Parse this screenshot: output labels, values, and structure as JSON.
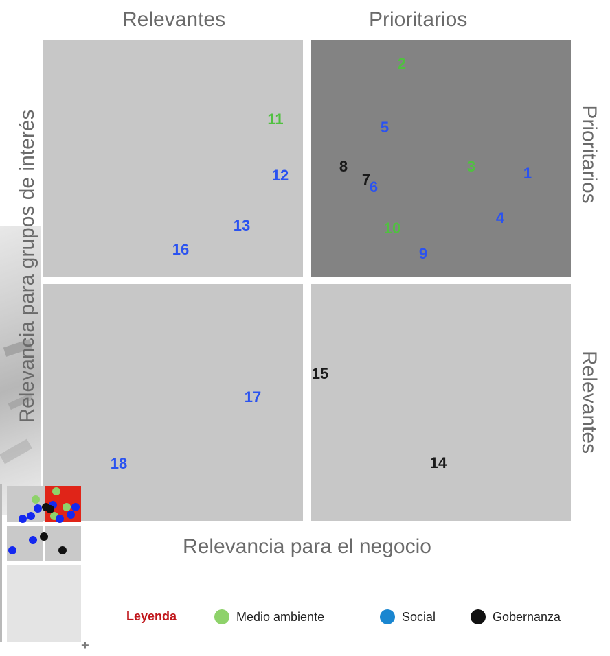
{
  "titles": {
    "top_left": "Relevantes",
    "top_right": "Prioritarios",
    "right_top": "Prioritarios",
    "right_bottom": "Relevantes",
    "y_axis": "Relevancia para grupos de interés",
    "x_axis": "Relevancia para el negocio"
  },
  "colors": {
    "medio_ambiente": "#50c040",
    "social": "#2a52f0",
    "gobernanza": "#1a1a1a"
  },
  "items": [
    {
      "label": "1",
      "category": "social"
    },
    {
      "label": "2",
      "category": "medio_ambiente"
    },
    {
      "label": "3",
      "category": "medio_ambiente"
    },
    {
      "label": "4",
      "category": "social"
    },
    {
      "label": "5",
      "category": "social"
    },
    {
      "label": "6",
      "category": "social"
    },
    {
      "label": "7",
      "category": "gobernanza"
    },
    {
      "label": "8",
      "category": "gobernanza"
    },
    {
      "label": "9",
      "category": "social"
    },
    {
      "label": "10",
      "category": "medio_ambiente"
    },
    {
      "label": "11",
      "category": "medio_ambiente"
    },
    {
      "label": "12",
      "category": "social"
    },
    {
      "label": "13",
      "category": "social"
    },
    {
      "label": "14",
      "category": "gobernanza"
    },
    {
      "label": "15",
      "category": "gobernanza"
    },
    {
      "label": "16",
      "category": "social"
    },
    {
      "label": "17",
      "category": "social"
    },
    {
      "label": "18",
      "category": "social"
    }
  ],
  "legend": {
    "title": "Leyenda",
    "items": [
      {
        "label": "Medio ambiente",
        "color": "#8ed26a"
      },
      {
        "label": "Social",
        "color": "#1a86d0"
      },
      {
        "label": "Gobernanza",
        "color": "#111111"
      }
    ]
  },
  "mini_map": {
    "highlight_color": "#e02418",
    "cell_color": "#c9c9c9",
    "empty_color": "#e4e4e4"
  },
  "footer_symbol": "+"
}
